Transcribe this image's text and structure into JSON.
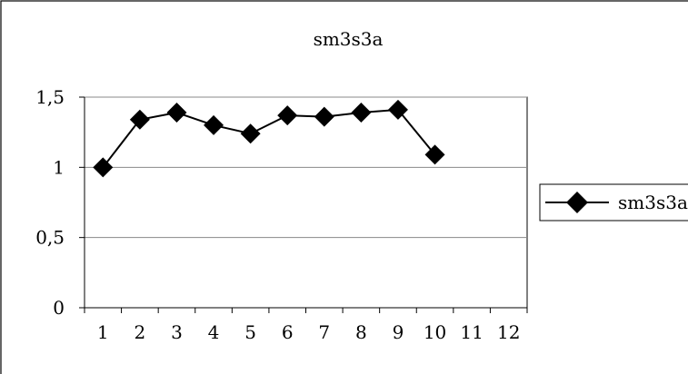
{
  "chart_data": {
    "type": "line",
    "title": "sm3s3a",
    "xlabel": "",
    "ylabel": "",
    "categories": [
      "1",
      "2",
      "3",
      "4",
      "5",
      "6",
      "7",
      "8",
      "9",
      "10",
      "11",
      "12"
    ],
    "series": [
      {
        "name": "sm3s3a",
        "values": [
          1.0,
          1.34,
          1.39,
          1.3,
          1.24,
          1.37,
          1.36,
          1.39,
          1.41,
          1.09,
          null,
          null
        ],
        "color": "#000000",
        "marker": "diamond"
      }
    ],
    "ylim": [
      0,
      1.5
    ],
    "yticks": [
      {
        "value": 0,
        "label": "0"
      },
      {
        "value": 0.5,
        "label": "0,5"
      },
      {
        "value": 1,
        "label": "1"
      },
      {
        "value": 1.5,
        "label": "1,5"
      }
    ],
    "grid": true,
    "legend": "right"
  }
}
